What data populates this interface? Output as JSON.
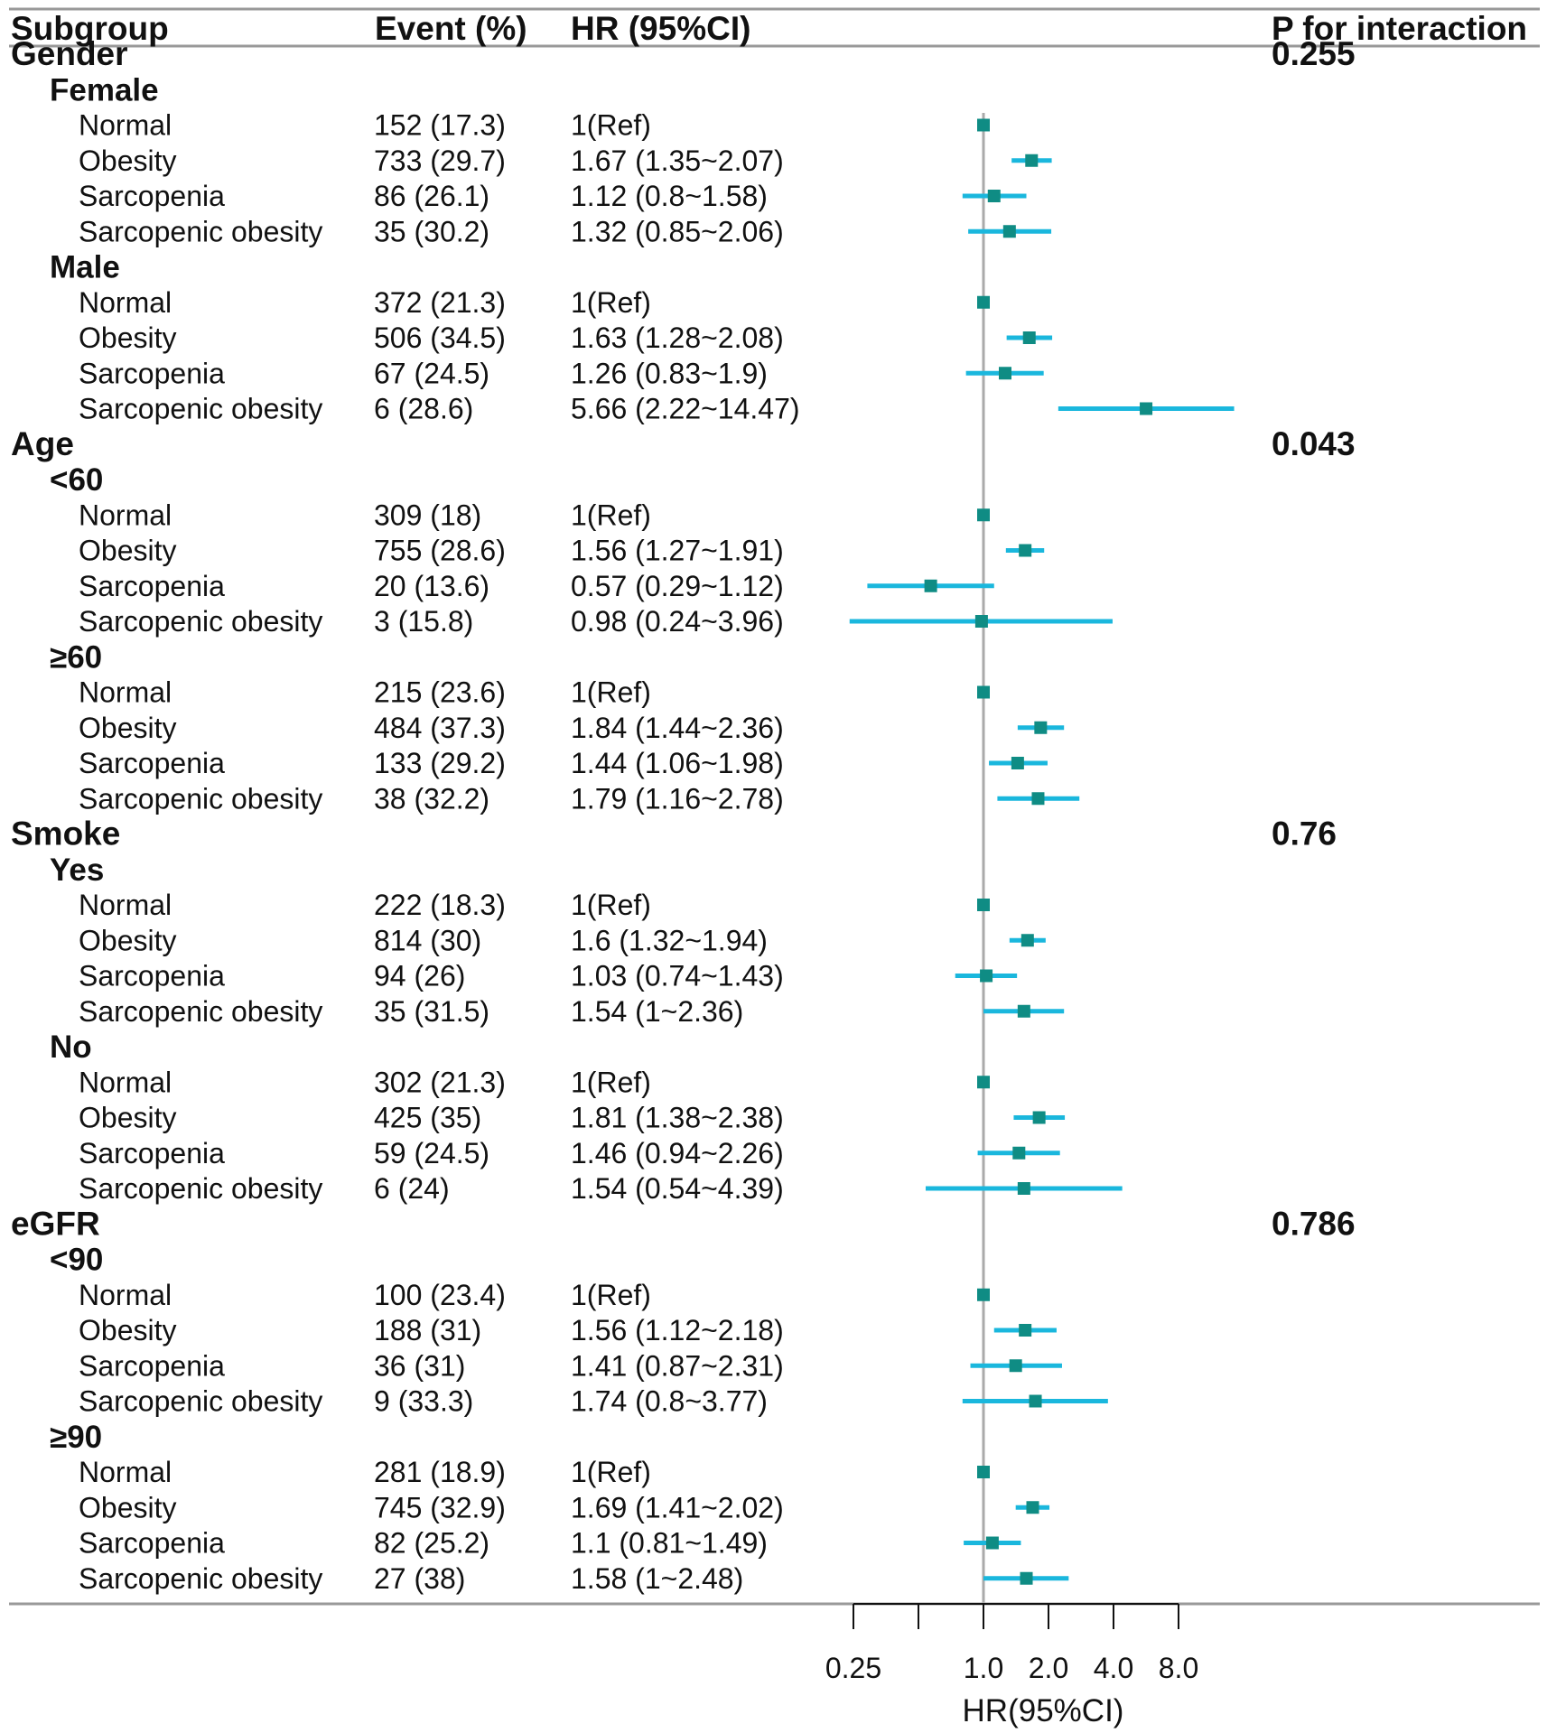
{
  "chart_data": {
    "type": "forest",
    "columns": {
      "subgroup": "Subgroup",
      "event": "Event (%)",
      "hr": "HR (95%CI)",
      "p": "P for interaction"
    },
    "xlabel": "HR(95%CI)",
    "xscale": "log2",
    "xlim": [
      0.25,
      8.0
    ],
    "reference_line": 1.0,
    "xticks": [
      0.25,
      0.5,
      1.0,
      2.0,
      4.0,
      8.0
    ],
    "xtick_labels": [
      "0.25",
      "",
      "1.0",
      "2.0",
      "4.0",
      "8.0"
    ],
    "colors": {
      "marker": "#0f8c84",
      "ci": "#1ab7dd",
      "refline": "#aaaaaa",
      "rule": "#999999"
    },
    "groups": [
      {
        "name": "Gender",
        "p": "0.255",
        "subgroups": [
          {
            "name": "Female",
            "rows": [
              {
                "label": "Normal",
                "event": "152 (17.3)",
                "hr_text": "1(Ref)",
                "hr": 1.0,
                "lo": null,
                "hi": null
              },
              {
                "label": "Obesity",
                "event": "733 (29.7)",
                "hr_text": "1.67 (1.35~2.07)",
                "hr": 1.67,
                "lo": 1.35,
                "hi": 2.07
              },
              {
                "label": "Sarcopenia",
                "event": "86 (26.1)",
                "hr_text": "1.12 (0.8~1.58)",
                "hr": 1.12,
                "lo": 0.8,
                "hi": 1.58
              },
              {
                "label": "Sarcopenic obesity",
                "event": "35 (30.2)",
                "hr_text": "1.32 (0.85~2.06)",
                "hr": 1.32,
                "lo": 0.85,
                "hi": 2.06
              }
            ]
          },
          {
            "name": "Male",
            "rows": [
              {
                "label": "Normal",
                "event": "372 (21.3)",
                "hr_text": "1(Ref)",
                "hr": 1.0,
                "lo": null,
                "hi": null
              },
              {
                "label": "Obesity",
                "event": "506 (34.5)",
                "hr_text": "1.63 (1.28~2.08)",
                "hr": 1.63,
                "lo": 1.28,
                "hi": 2.08
              },
              {
                "label": "Sarcopenia",
                "event": "67 (24.5)",
                "hr_text": "1.26 (0.83~1.9)",
                "hr": 1.26,
                "lo": 0.83,
                "hi": 1.9
              },
              {
                "label": "Sarcopenic obesity",
                "event": "6 (28.6)",
                "hr_text": "5.66 (2.22~14.47)",
                "hr": 5.66,
                "lo": 2.22,
                "hi": 14.47
              }
            ]
          }
        ]
      },
      {
        "name": "Age",
        "p": "0.043",
        "subgroups": [
          {
            "name": "<60",
            "rows": [
              {
                "label": "Normal",
                "event": "309 (18)",
                "hr_text": "1(Ref)",
                "hr": 1.0,
                "lo": null,
                "hi": null
              },
              {
                "label": "Obesity",
                "event": "755 (28.6)",
                "hr_text": "1.56 (1.27~1.91)",
                "hr": 1.56,
                "lo": 1.27,
                "hi": 1.91
              },
              {
                "label": "Sarcopenia",
                "event": "20 (13.6)",
                "hr_text": "0.57 (0.29~1.12)",
                "hr": 0.57,
                "lo": 0.29,
                "hi": 1.12
              },
              {
                "label": "Sarcopenic obesity",
                "event": "3 (15.8)",
                "hr_text": "0.98 (0.24~3.96)",
                "hr": 0.98,
                "lo": 0.24,
                "hi": 3.96
              }
            ]
          },
          {
            "name": "≥60",
            "rows": [
              {
                "label": "Normal",
                "event": "215 (23.6)",
                "hr_text": "1(Ref)",
                "hr": 1.0,
                "lo": null,
                "hi": null
              },
              {
                "label": "Obesity",
                "event": "484 (37.3)",
                "hr_text": "1.84 (1.44~2.36)",
                "hr": 1.84,
                "lo": 1.44,
                "hi": 2.36
              },
              {
                "label": "Sarcopenia",
                "event": "133 (29.2)",
                "hr_text": "1.44 (1.06~1.98)",
                "hr": 1.44,
                "lo": 1.06,
                "hi": 1.98
              },
              {
                "label": "Sarcopenic obesity",
                "event": "38 (32.2)",
                "hr_text": "1.79 (1.16~2.78)",
                "hr": 1.79,
                "lo": 1.16,
                "hi": 2.78
              }
            ]
          }
        ]
      },
      {
        "name": "Smoke",
        "p": "0.76",
        "subgroups": [
          {
            "name": "Yes",
            "rows": [
              {
                "label": "Normal",
                "event": "222 (18.3)",
                "hr_text": "1(Ref)",
                "hr": 1.0,
                "lo": null,
                "hi": null
              },
              {
                "label": "Obesity",
                "event": "814 (30)",
                "hr_text": "1.6 (1.32~1.94)",
                "hr": 1.6,
                "lo": 1.32,
                "hi": 1.94
              },
              {
                "label": "Sarcopenia",
                "event": "94 (26)",
                "hr_text": "1.03 (0.74~1.43)",
                "hr": 1.03,
                "lo": 0.74,
                "hi": 1.43
              },
              {
                "label": "Sarcopenic obesity",
                "event": "35 (31.5)",
                "hr_text": "1.54 (1~2.36)",
                "hr": 1.54,
                "lo": 1.0,
                "hi": 2.36
              }
            ]
          },
          {
            "name": "No",
            "rows": [
              {
                "label": "Normal",
                "event": "302 (21.3)",
                "hr_text": "1(Ref)",
                "hr": 1.0,
                "lo": null,
                "hi": null
              },
              {
                "label": "Obesity",
                "event": "425 (35)",
                "hr_text": "1.81 (1.38~2.38)",
                "hr": 1.81,
                "lo": 1.38,
                "hi": 2.38
              },
              {
                "label": "Sarcopenia",
                "event": "59 (24.5)",
                "hr_text": "1.46 (0.94~2.26)",
                "hr": 1.46,
                "lo": 0.94,
                "hi": 2.26
              },
              {
                "label": "Sarcopenic obesity",
                "event": "6 (24)",
                "hr_text": "1.54 (0.54~4.39)",
                "hr": 1.54,
                "lo": 0.54,
                "hi": 4.39
              }
            ]
          }
        ]
      },
      {
        "name": "eGFR",
        "p": "0.786",
        "subgroups": [
          {
            "name": "<90",
            "rows": [
              {
                "label": "Normal",
                "event": "100 (23.4)",
                "hr_text": "1(Ref)",
                "hr": 1.0,
                "lo": null,
                "hi": null
              },
              {
                "label": "Obesity",
                "event": "188 (31)",
                "hr_text": "1.56 (1.12~2.18)",
                "hr": 1.56,
                "lo": 1.12,
                "hi": 2.18
              },
              {
                "label": "Sarcopenia",
                "event": "36 (31)",
                "hr_text": "1.41 (0.87~2.31)",
                "hr": 1.41,
                "lo": 0.87,
                "hi": 2.31
              },
              {
                "label": "Sarcopenic obesity",
                "event": "9 (33.3)",
                "hr_text": "1.74 (0.8~3.77)",
                "hr": 1.74,
                "lo": 0.8,
                "hi": 3.77
              }
            ]
          },
          {
            "name": "≥90",
            "rows": [
              {
                "label": "Normal",
                "event": "281 (18.9)",
                "hr_text": "1(Ref)",
                "hr": 1.0,
                "lo": null,
                "hi": null
              },
              {
                "label": "Obesity",
                "event": "745 (32.9)",
                "hr_text": "1.69 (1.41~2.02)",
                "hr": 1.69,
                "lo": 1.41,
                "hi": 2.02
              },
              {
                "label": "Sarcopenia",
                "event": "82 (25.2)",
                "hr_text": "1.1 (0.81~1.49)",
                "hr": 1.1,
                "lo": 0.81,
                "hi": 1.49
              },
              {
                "label": "Sarcopenic obesity",
                "event": "27 (38)",
                "hr_text": "1.58 (1~2.48)",
                "hr": 1.58,
                "lo": 1.0,
                "hi": 2.48
              }
            ]
          }
        ]
      }
    ]
  }
}
